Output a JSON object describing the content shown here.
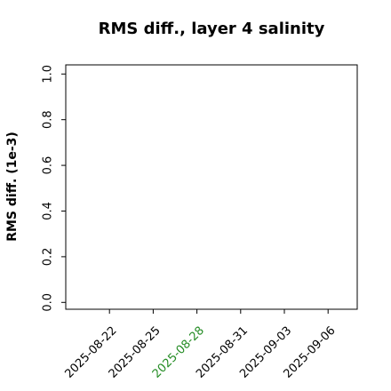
{
  "chart_data": {
    "type": "line",
    "title": "RMS diff., layer 4 salinity",
    "ylabel": "RMS diff. (1e-3)",
    "series": [],
    "xlim": [
      "2025-08-19",
      "2025-09-08"
    ],
    "xticks": [
      "2025-08-22",
      "2025-08-25",
      "2025-08-28",
      "2025-08-31",
      "2025-09-03",
      "2025-09-06"
    ],
    "highlight_xtick": "2025-08-28",
    "highlight_color": "#228b22",
    "ylim": [
      -0.03,
      1.04
    ],
    "yticks": [
      {
        "value": 0,
        "label": "0.0"
      },
      {
        "value": 0.2,
        "label": "0.2"
      },
      {
        "value": 0.4,
        "label": "0.4"
      },
      {
        "value": 0.6,
        "label": "0.6"
      },
      {
        "value": 0.8,
        "label": "0.8"
      },
      {
        "value": 1,
        "label": "1.0"
      }
    ]
  }
}
